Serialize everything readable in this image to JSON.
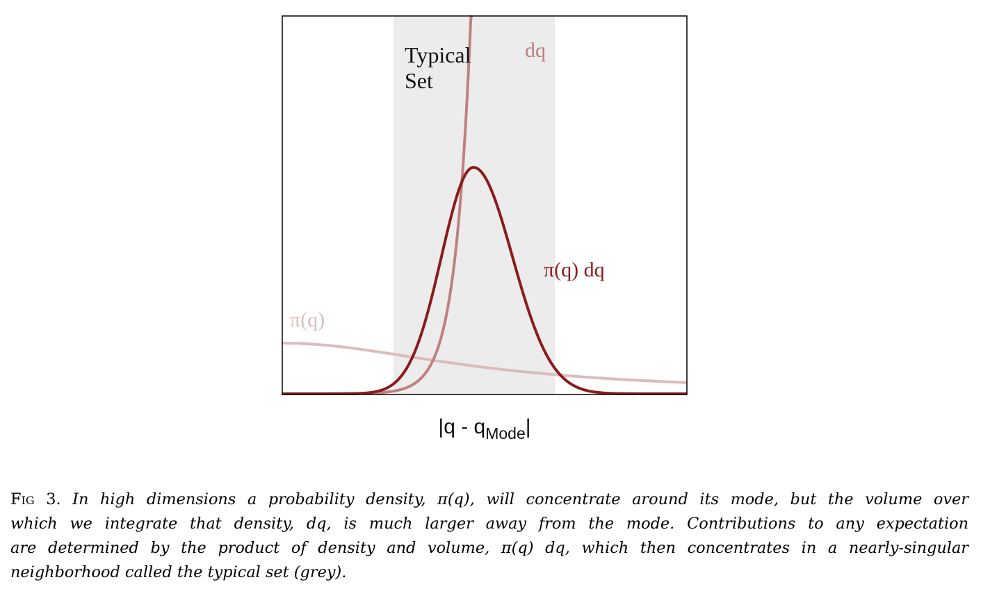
{
  "chart_data": {
    "type": "line",
    "xlabel_main": "|q - q",
    "xlabel_sub": "Mode",
    "xlabel_end": "|",
    "ylabel": "",
    "grid": false,
    "shaded_region": {
      "label_line1": "Typical",
      "label_line2": "Set",
      "color": "#ececec"
    },
    "series": [
      {
        "name": "dq",
        "color": "#c08080"
      },
      {
        "name": "π(q) dq",
        "color": "#8b1c1c"
      },
      {
        "name": "π(q)",
        "color": "#dcbcbc"
      }
    ]
  },
  "caption": {
    "label": "Fig 3.",
    "lines": [
      "In high dimensions a probability density, π(q), will concentrate around its mode, but the volume over",
      "which we integrate that density, dq, is much larger away from the mode. Contributions to any expectation",
      "are determined by the product of density and volume, π(q) dq, which then concentrates in a nearly-singular",
      "neighborhood called the typical set (grey)."
    ]
  }
}
